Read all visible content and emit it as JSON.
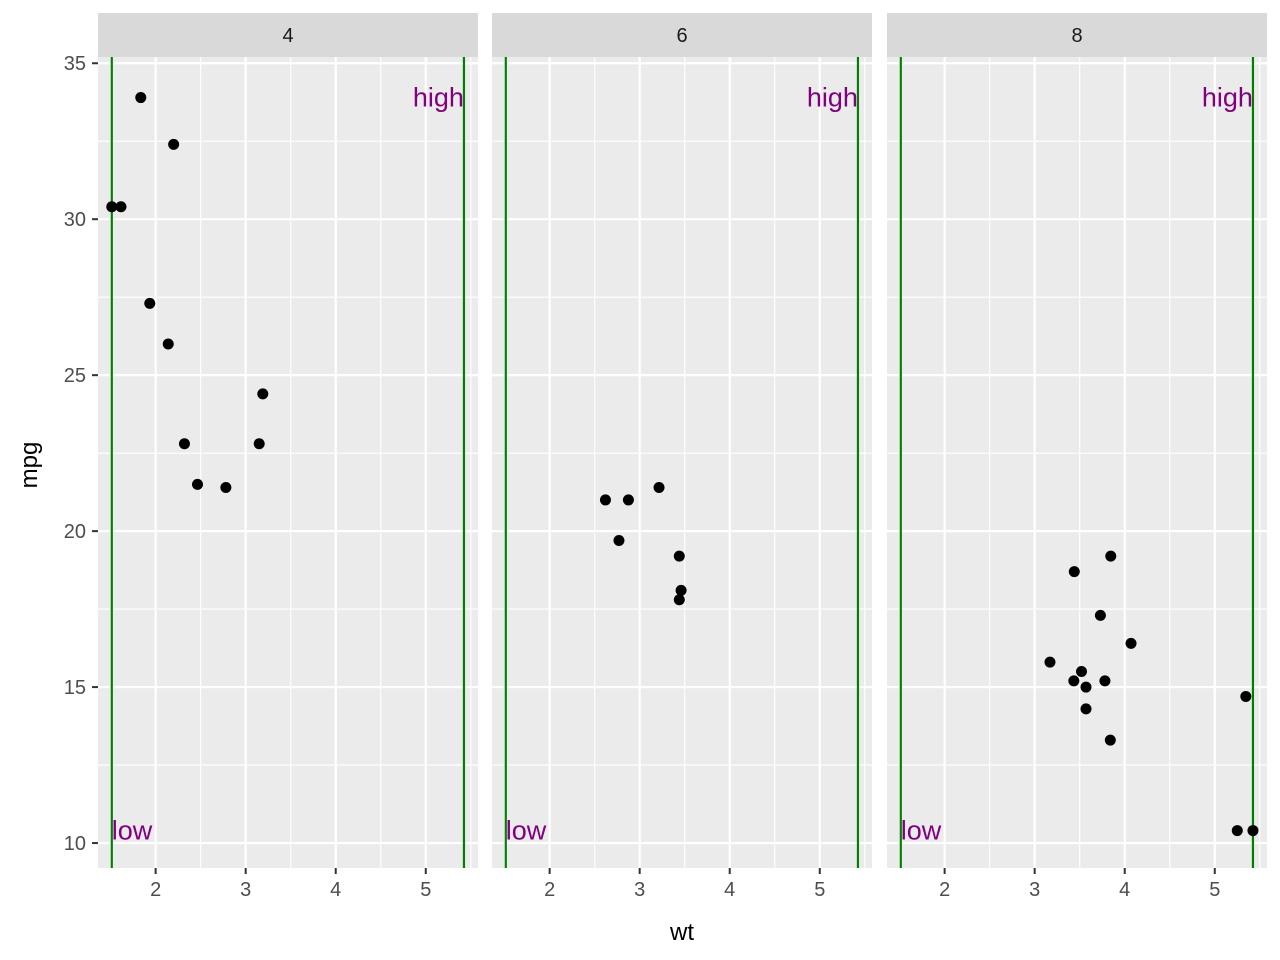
{
  "chart_data": {
    "type": "scatter",
    "title": "",
    "xlabel": "wt",
    "ylabel": "mpg",
    "xlim": [
      1.36,
      5.58
    ],
    "ylim": [
      9.2,
      35.2
    ],
    "x_ticks": [
      2,
      3,
      4,
      5
    ],
    "x_tick_labels": [
      "2",
      "3",
      "4",
      "5"
    ],
    "y_ticks": [
      10,
      15,
      20,
      25,
      30,
      35
    ],
    "y_tick_labels": [
      "10",
      "15",
      "20",
      "25",
      "30",
      "35"
    ],
    "grid": true,
    "legend": "none",
    "colors": {
      "panel_background": "#ebebeb",
      "strip_background": "#d9d9d9",
      "grid": "#ffffff",
      "point": "#000000",
      "vline": "#008000",
      "annotation": "#800080"
    },
    "vlines": [
      1.513,
      5.424
    ],
    "annotations": [
      {
        "label": "low",
        "x": 1.513,
        "y": 10.4,
        "anchor": "bottom-left"
      },
      {
        "label": "high",
        "x": 5.424,
        "y": 33.9,
        "anchor": "top-right"
      }
    ],
    "panels": [
      {
        "label": "4",
        "points": [
          {
            "x": 1.513,
            "y": 30.4
          },
          {
            "x": 1.615,
            "y": 30.4
          },
          {
            "x": 1.835,
            "y": 33.9
          },
          {
            "x": 1.935,
            "y": 27.3
          },
          {
            "x": 2.14,
            "y": 26.0
          },
          {
            "x": 2.2,
            "y": 32.4
          },
          {
            "x": 2.32,
            "y": 22.8
          },
          {
            "x": 2.465,
            "y": 21.5
          },
          {
            "x": 2.78,
            "y": 21.4
          },
          {
            "x": 3.15,
            "y": 22.8
          },
          {
            "x": 3.19,
            "y": 24.4
          }
        ]
      },
      {
        "label": "6",
        "points": [
          {
            "x": 2.62,
            "y": 21.0
          },
          {
            "x": 2.77,
            "y": 19.7
          },
          {
            "x": 2.875,
            "y": 21.0
          },
          {
            "x": 3.215,
            "y": 21.4
          },
          {
            "x": 3.44,
            "y": 19.2
          },
          {
            "x": 3.44,
            "y": 17.8
          },
          {
            "x": 3.46,
            "y": 18.1
          }
        ]
      },
      {
        "label": "8",
        "points": [
          {
            "x": 3.17,
            "y": 15.8
          },
          {
            "x": 3.435,
            "y": 15.2
          },
          {
            "x": 3.44,
            "y": 18.7
          },
          {
            "x": 3.52,
            "y": 15.5
          },
          {
            "x": 3.57,
            "y": 15.0
          },
          {
            "x": 3.57,
            "y": 14.3
          },
          {
            "x": 3.73,
            "y": 17.3
          },
          {
            "x": 3.78,
            "y": 15.2
          },
          {
            "x": 3.84,
            "y": 13.3
          },
          {
            "x": 3.845,
            "y": 19.2
          },
          {
            "x": 4.07,
            "y": 16.4
          },
          {
            "x": 5.25,
            "y": 10.4
          },
          {
            "x": 5.345,
            "y": 14.7
          },
          {
            "x": 5.424,
            "y": 10.4
          }
        ]
      }
    ]
  }
}
